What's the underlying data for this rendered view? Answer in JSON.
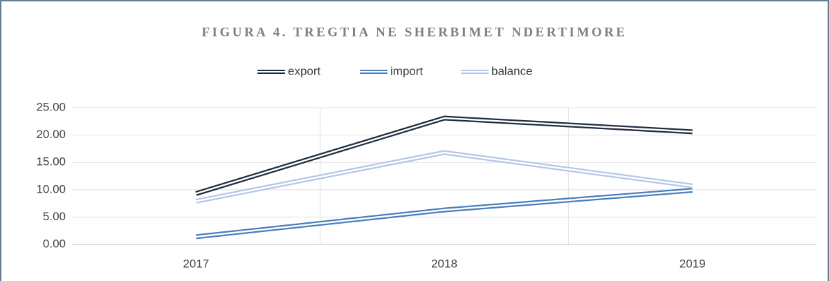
{
  "chart_data": {
    "type": "line",
    "title": "FIGURA 4. TREGTIA NE SHERBIMET NDERTIMORE",
    "categories": [
      "2017",
      "2018",
      "2019"
    ],
    "series": [
      {
        "name": "export",
        "color": "#1f2d3d",
        "values": [
          9.3,
          23.1,
          20.6
        ]
      },
      {
        "name": "import",
        "color": "#4a7ebb",
        "values": [
          1.4,
          6.3,
          9.9
        ]
      },
      {
        "name": "balance",
        "color": "#b4c7e7",
        "values": [
          7.9,
          16.8,
          10.7
        ]
      }
    ],
    "ylim": [
      0,
      25
    ],
    "yticks": [
      {
        "value": 0,
        "label": "0.00"
      },
      {
        "value": 5,
        "label": "5.00"
      },
      {
        "value": 10,
        "label": "10.00"
      },
      {
        "value": 15,
        "label": "15.00"
      },
      {
        "value": 20,
        "label": "20.00"
      },
      {
        "value": 25,
        "label": "25.00"
      }
    ],
    "grid": true,
    "legend": "top"
  }
}
